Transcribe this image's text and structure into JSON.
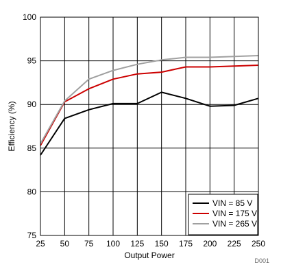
{
  "chart_data": {
    "type": "line",
    "title": "",
    "xlabel": "Output Power",
    "ylabel": "Efficiency (%)",
    "xlim": [
      25,
      250
    ],
    "ylim": [
      75,
      100
    ],
    "xticks": [
      25,
      50,
      75,
      100,
      125,
      150,
      175,
      200,
      225,
      250
    ],
    "yticks": [
      75,
      80,
      85,
      90,
      95,
      100
    ],
    "grid": true,
    "legend_position": "bottom-right",
    "series": [
      {
        "name": "VIN = 85 V",
        "color": "#000000",
        "x": [
          25,
          50,
          75,
          100,
          125,
          150,
          175,
          200,
          225,
          250
        ],
        "y": [
          84.2,
          88.4,
          89.4,
          90.1,
          90.1,
          91.4,
          90.7,
          89.8,
          89.9,
          90.7
        ]
      },
      {
        "name": "VIN = 175 V",
        "color": "#cc0000",
        "x": [
          25,
          50,
          75,
          100,
          125,
          150,
          175,
          200,
          225,
          250
        ],
        "y": [
          85.3,
          90.3,
          91.8,
          92.9,
          93.5,
          93.7,
          94.3,
          94.3,
          94.4,
          94.5
        ]
      },
      {
        "name": "VIN = 265 V",
        "color": "#a0a0a0",
        "x": [
          25,
          50,
          75,
          100,
          125,
          150,
          175,
          200,
          225,
          250
        ],
        "y": [
          85.5,
          90.4,
          92.9,
          93.9,
          94.6,
          95.1,
          95.4,
          95.4,
          95.5,
          95.6
        ]
      }
    ],
    "footnote": "D001"
  }
}
